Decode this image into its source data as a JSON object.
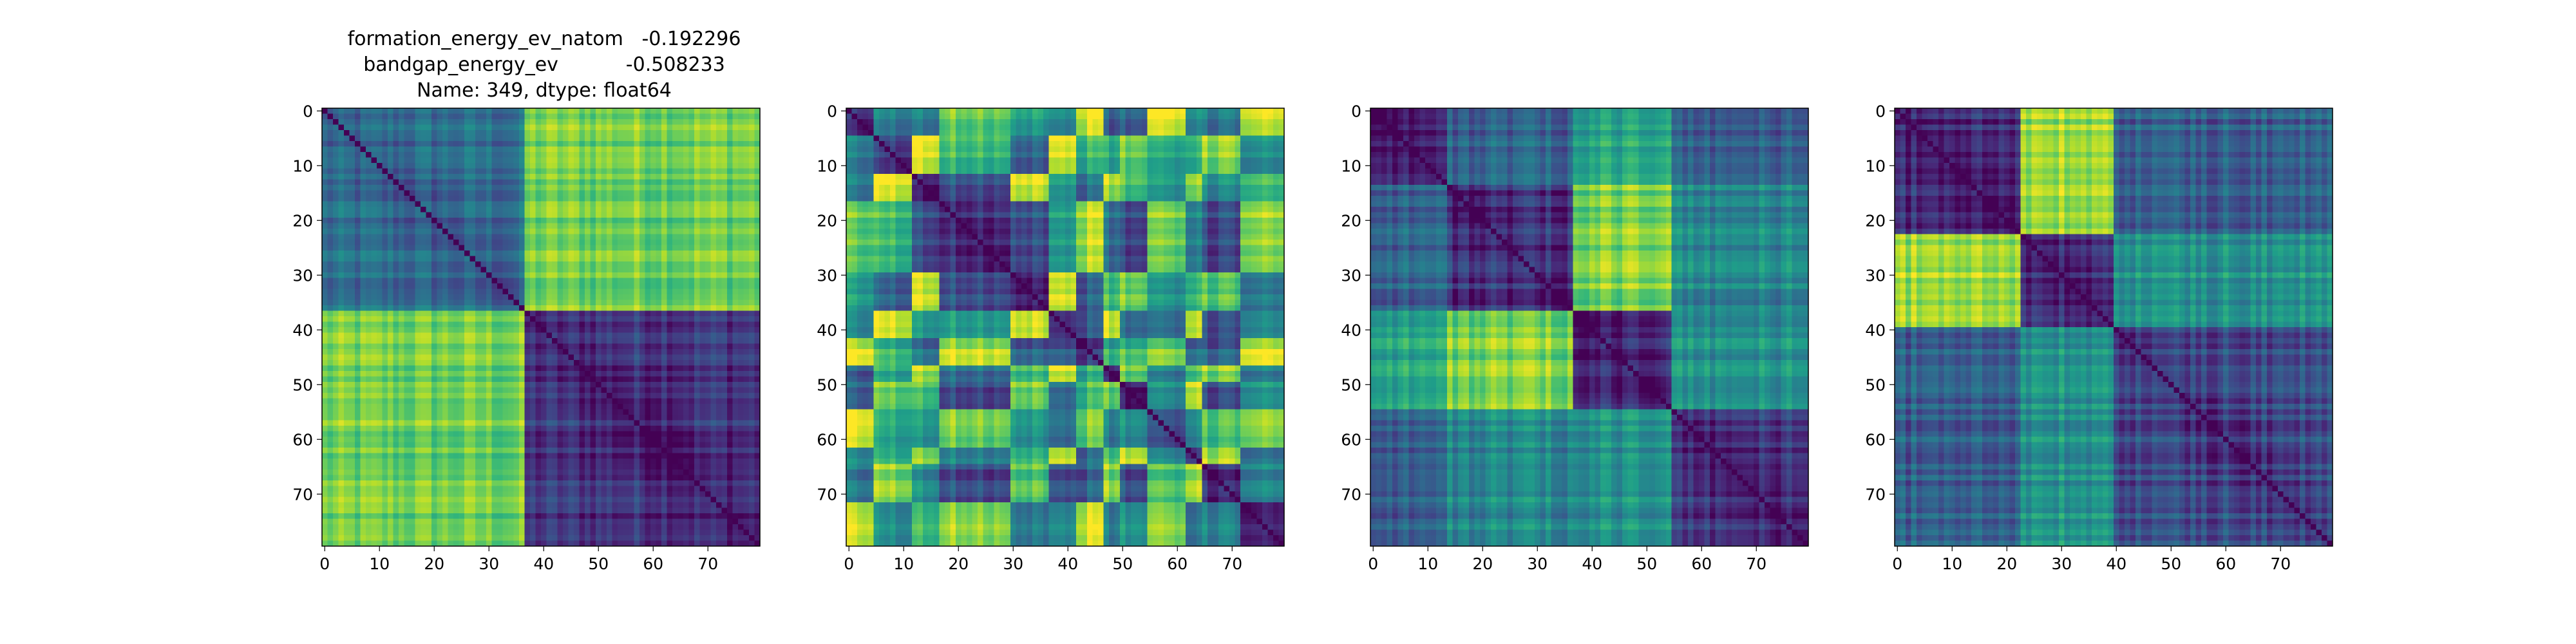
{
  "figure": {
    "title_lines": [
      "formation_energy_ev_natom   -0.192296",
      "bandgap_energy_ev           -0.508233",
      "Name: 349, dtype: float64"
    ]
  },
  "chart_data": [
    {
      "type": "heatmap",
      "colormap": "viridis",
      "n": 80,
      "groups": [
        0,
        37,
        80
      ],
      "pattern": "two_block",
      "xticks": [
        0,
        10,
        20,
        30,
        40,
        50,
        60,
        70
      ],
      "yticks": [
        0,
        10,
        20,
        30,
        40,
        50,
        60,
        70
      ],
      "xlim": [
        0,
        79
      ],
      "ylim": [
        0,
        79
      ]
    },
    {
      "type": "heatmap",
      "colormap": "viridis",
      "n": 80,
      "groups": [
        0,
        5,
        12,
        17,
        30,
        37,
        42,
        47,
        50,
        55,
        62,
        65,
        72,
        80
      ],
      "pattern": "banded",
      "xticks": [
        0,
        10,
        20,
        30,
        40,
        50,
        60,
        70
      ],
      "yticks": [
        0,
        10,
        20,
        30,
        40,
        50,
        60,
        70
      ],
      "xlim": [
        0,
        79
      ],
      "ylim": [
        0,
        79
      ]
    },
    {
      "type": "heatmap",
      "colormap": "viridis",
      "n": 80,
      "groups": [
        0,
        14,
        37,
        55,
        80
      ],
      "pattern": "four_block",
      "xticks": [
        0,
        10,
        20,
        30,
        40,
        50,
        60,
        70
      ],
      "yticks": [
        0,
        10,
        20,
        30,
        40,
        50,
        60,
        70
      ],
      "xlim": [
        0,
        79
      ],
      "ylim": [
        0,
        79
      ]
    },
    {
      "type": "heatmap",
      "colormap": "viridis",
      "n": 80,
      "groups": [
        0,
        23,
        40,
        80
      ],
      "pattern": "three_block",
      "xticks": [
        0,
        10,
        20,
        30,
        40,
        50,
        60,
        70
      ],
      "yticks": [
        0,
        10,
        20,
        30,
        40,
        50,
        60,
        70
      ],
      "xlim": [
        0,
        79
      ],
      "ylim": [
        0,
        79
      ]
    }
  ]
}
